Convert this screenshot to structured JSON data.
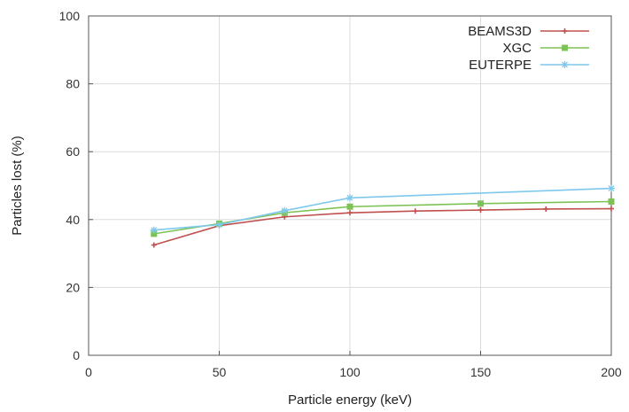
{
  "chart_data": {
    "type": "line",
    "title": "",
    "xlabel": "Particle energy (keV)",
    "ylabel": "Particles lost (%)",
    "xlim": [
      0,
      200
    ],
    "ylim": [
      0,
      100
    ],
    "xticks": [
      "0",
      "50",
      "100",
      "150",
      "200"
    ],
    "yticks": [
      "0",
      "20",
      "40",
      "60",
      "80",
      "100"
    ],
    "grid": true,
    "legend_position": "top-right",
    "series": [
      {
        "name": "BEAMS3D",
        "color": "#c0504d",
        "marker": "plus",
        "x": [
          25,
          50,
          75,
          100,
          125,
          150,
          175,
          200
        ],
        "y": [
          32.5,
          38.2,
          40.8,
          42.0,
          42.5,
          42.8,
          43.1,
          43.2
        ]
      },
      {
        "name": "XGC",
        "color": "#7dc254",
        "marker": "square",
        "x": [
          25,
          50,
          75,
          100,
          150,
          200
        ],
        "y": [
          35.8,
          38.8,
          42.0,
          43.8,
          44.7,
          45.3
        ]
      },
      {
        "name": "EUTERPE",
        "color": "#7ec8ee",
        "marker": "star",
        "x": [
          25,
          50,
          75,
          100,
          200
        ],
        "y": [
          36.9,
          38.5,
          42.6,
          46.4,
          49.2
        ]
      }
    ]
  }
}
